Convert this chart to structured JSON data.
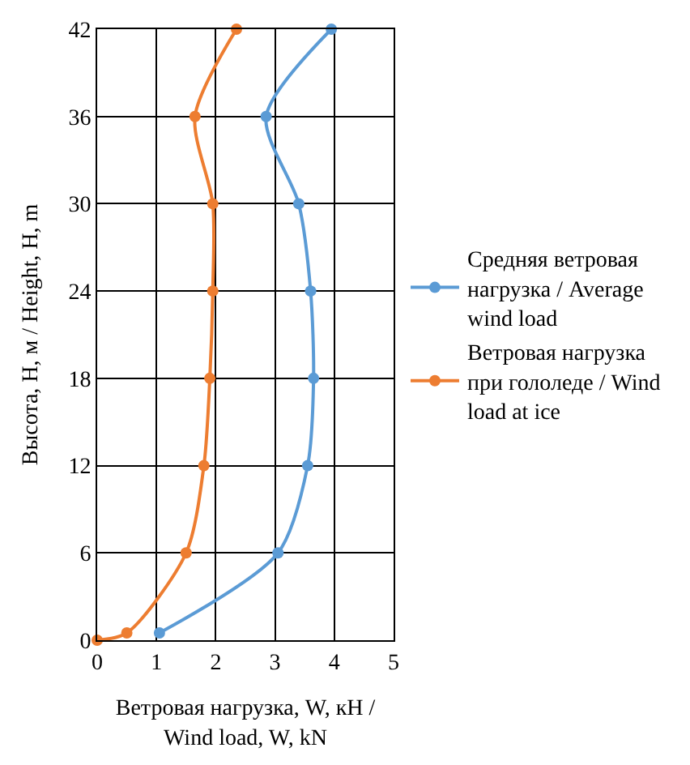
{
  "chart_data": {
    "type": "line",
    "xlabel": "Ветровая нагрузка, W, кН / Wind load, W, kN",
    "ylabel": "Высота, H, м / Height, H, m",
    "xlim": [
      0,
      5
    ],
    "xticks": [
      0,
      1,
      2,
      3,
      4,
      5
    ],
    "ylim": [
      0,
      42
    ],
    "yticks": [
      0,
      6,
      12,
      18,
      24,
      30,
      36,
      42
    ],
    "grid": true,
    "legend": "right",
    "marker": "circle",
    "line_style": "solid",
    "series": [
      {
        "name": "Средняя ветровая нагрузка / Average wind load",
        "color": "#5b9bd5",
        "x": [
          1.05,
          3.05,
          3.55,
          3.65,
          3.6,
          3.4,
          2.85,
          3.95
        ],
        "values": [
          0.5,
          6,
          12,
          18,
          24,
          30,
          36,
          42
        ]
      },
      {
        "name": "Ветровая нагрузка при гололеде / Wind load at ice",
        "color": "#ed7d31",
        "x": [
          0,
          0.5,
          1.5,
          1.8,
          1.9,
          1.95,
          1.95,
          1.65,
          2.35
        ],
        "values": [
          0,
          0.5,
          6,
          12,
          18,
          24,
          30,
          36,
          42
        ]
      }
    ]
  }
}
